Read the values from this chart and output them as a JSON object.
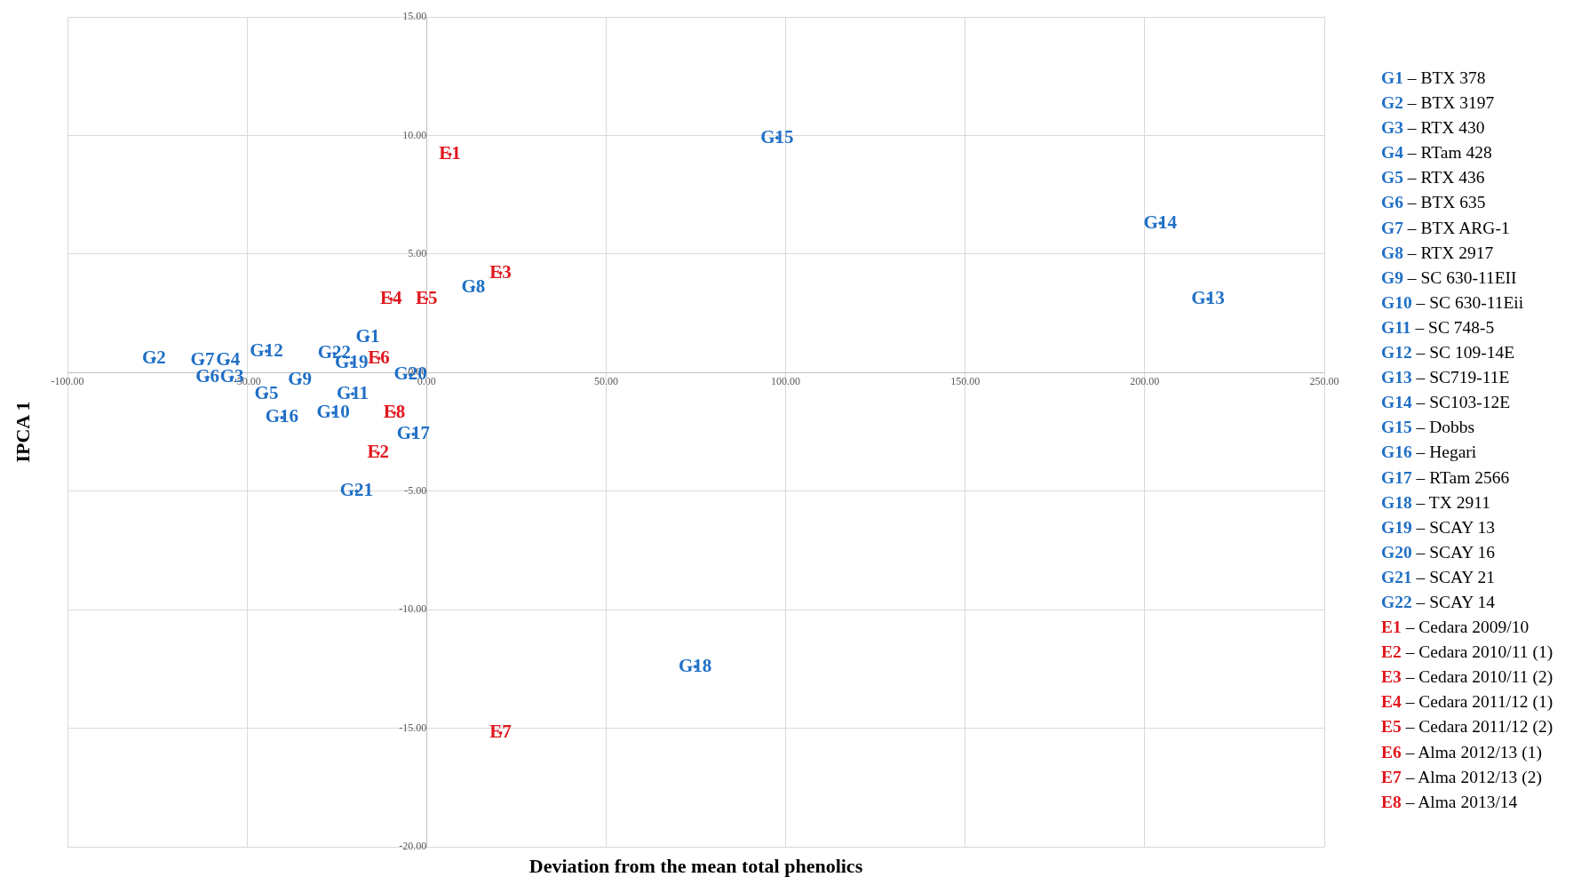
{
  "chart_data": {
    "type": "scatter",
    "xlabel": "Deviation from the mean total phenolics",
    "ylabel": "IPCA 1",
    "xlim": [
      -100,
      250
    ],
    "ylim": [
      -20,
      15
    ],
    "xticks": [
      {
        "value": -100,
        "label": "-100.00"
      },
      {
        "value": -50,
        "label": "-50.00"
      },
      {
        "value": 0,
        "label": "0.00"
      },
      {
        "value": 50,
        "label": "50.00"
      },
      {
        "value": 100,
        "label": "100.00"
      },
      {
        "value": 150,
        "label": "150.00"
      },
      {
        "value": 200,
        "label": "200.00"
      },
      {
        "value": 250,
        "label": "250.00"
      }
    ],
    "yticks": [
      {
        "value": -20,
        "label": "-20.00"
      },
      {
        "value": -15,
        "label": "-15.00"
      },
      {
        "value": -10,
        "label": "-10.00"
      },
      {
        "value": -5,
        "label": "-5.00"
      },
      {
        "value": 0,
        "label": "0.00"
      },
      {
        "value": 5,
        "label": "5.00"
      },
      {
        "value": 10,
        "label": "10.00"
      },
      {
        "value": 15,
        "label": "15.00"
      }
    ],
    "grid": true,
    "legend": false,
    "series": [
      {
        "color": "#1f6fc6",
        "x": [
          -16.4,
          -75.9,
          -54.2,
          -55.3,
          -44.6,
          -61,
          -62.4,
          13,
          -35.3,
          -26,
          -20.6,
          -44.6,
          217.6,
          204.3,
          97.6,
          -40.3,
          -3.7,
          74.8,
          -20.9,
          -4.5,
          -19.5,
          -25.7
        ],
        "values": [
          1.5,
          0.6,
          -0.2,
          0.5,
          -0.9,
          -0.2,
          0.5,
          3.6,
          -0.3,
          -1.7,
          -0.9,
          0.9,
          3.1,
          6.3,
          9.9,
          -1.9,
          -2.6,
          -12.4,
          0.4,
          -0.1,
          -5,
          0.8
        ],
        "value_labels": [
          "G1",
          "G2",
          "G3",
          "G4",
          "G5",
          "G6",
          "G7",
          "G8",
          "G9",
          "G10",
          "G11",
          "G12",
          "G13",
          "G14",
          "G15",
          "G16",
          "G17",
          "G18",
          "G19",
          "G20",
          "G21",
          "G22"
        ]
      },
      {
        "color": "#e0161d",
        "x": [
          6.5,
          -13.5,
          20.6,
          -9.9,
          0,
          -13.3,
          20.6,
          -9
        ],
        "values": [
          9.2,
          -3.4,
          4.2,
          3.1,
          3.1,
          0.6,
          -15.2,
          -1.7
        ],
        "value_labels": [
          "E1",
          "E2",
          "E3",
          "E4",
          "E5",
          "E6",
          "E7",
          "E8"
        ]
      }
    ],
    "annotations": [
      "G1 – BTX 378",
      "G2 – BTX 3197",
      "G3 – RTX 430",
      "G4 – RTam 428",
      "G5 – RTX 436",
      "G6 – BTX 635",
      "G7 – BTX ARG-1",
      "G8 – RTX 2917",
      "G9 – SC 630-11EII",
      "G10 – SC 630-11Eii",
      "G11 – SC 748-5",
      "G12 – SC 109-14E",
      "G13 – SC719-11E",
      "G14 – SC103-12E",
      "G15 – Dobbs",
      "G16 – Hegari",
      "G17 – RTam 2566",
      "G18 – TX 2911",
      "G19 – SCAY 13",
      "G20 – SCAY 16",
      "G21 – SCAY 21",
      "G22 – SCAY 14",
      "E1 – Cedara 2009/10",
      "E2 – Cedara 2010/11 (1)",
      "E3 – Cedara 2010/11 (2)",
      "E4 – Cedara 2011/12 (1)",
      "E5 – Cedara 2011/12 (2)",
      "E6 – Alma 2012/13 (1)",
      "E7 – Alma 2012/13 (2)",
      "E8 – Alma 2013/14"
    ]
  }
}
